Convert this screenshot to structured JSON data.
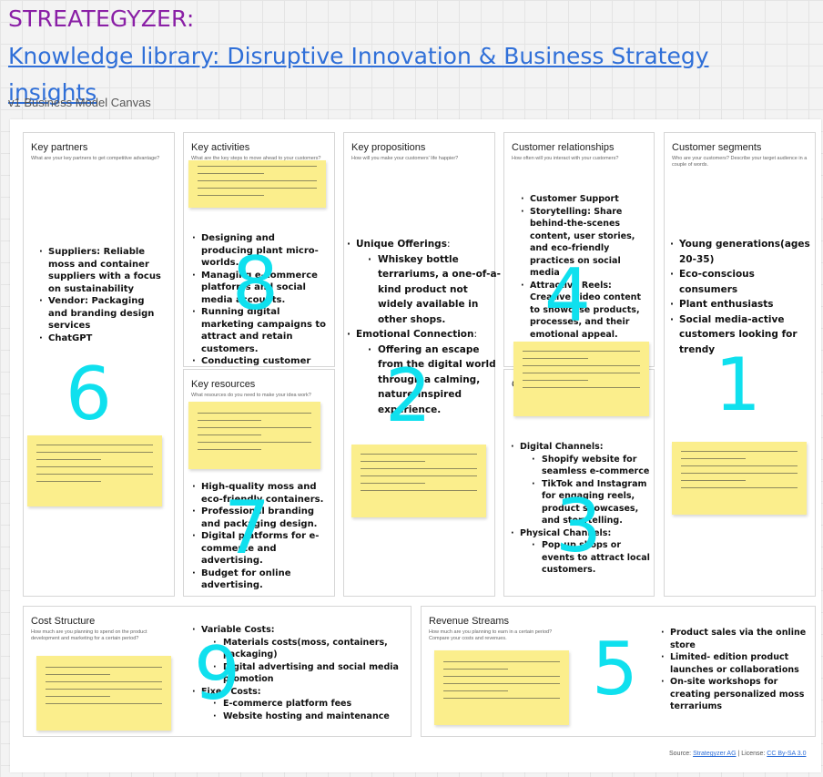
{
  "header": {
    "title": "STREATEGYZER:",
    "link_text": "Knowledge library: Disruptive Innovation & Business Strategy insights",
    "canvas_label": "v1 Business Model Canvas"
  },
  "blocks": {
    "key_partners": {
      "title": "Key partners",
      "question": "What are your key partners to get competitive advantage?",
      "items": [
        "Suppliers: Reliable moss and container suppliers with a focus on sustainability",
        "Vendor: Packaging and branding design services",
        "ChatGPT"
      ],
      "number": "6"
    },
    "key_activities": {
      "title": "Key activities",
      "question": "What are the key steps to move ahead to your customers?",
      "items": [
        "Designing and producing plant micro-worlds.",
        "Managing e-commerce platforms and social media accounts.",
        "Running digital marketing campaigns to attract and retain customers.",
        "Conducting customer feedback surveys for product and brand improvements."
      ],
      "number": "8"
    },
    "key_resources": {
      "title": "Key resources",
      "question": "What resources do you need to make your idea work?",
      "items": [
        "High-quality moss and eco-friendly containers.",
        "Professional branding and packaging design.",
        "Digital platforms for e-commerce and advertising.",
        "Budget for online advertising."
      ],
      "number": "7"
    },
    "key_propositions": {
      "title": "Key propositions",
      "question": "How will you make your customers' life happier?",
      "items": [
        {
          "label": "Unique Offerings",
          "suffix": ":",
          "sub": [
            "Whiskey bottle terrariums, a one-of-a-kind product not widely available in other shops."
          ]
        },
        {
          "label": "Emotional Connection",
          "suffix": ":",
          "sub": [
            "Offering an escape from the digital world through a calming, nature-inspired experience."
          ]
        }
      ],
      "number": "2"
    },
    "customer_relationships": {
      "title": "Customer relationships",
      "question": "How often will you interact with your customers?",
      "items": [
        "Customer Support",
        "Storytelling: Share behind-the-scenes content, user stories, and eco-friendly practices on social media",
        "Attractive Reels: Creative video content to showcase products, processes, and their emotional appeal."
      ],
      "number": "4"
    },
    "channels": {
      "title": "C",
      "items": [
        {
          "label": "Digital Channels:",
          "sub": [
            "Shopify website for seamless e-commerce",
            "TikTok and Instagram for engaging reels, product showcases, and storytelling."
          ]
        },
        {
          "label": "Physical Channels:",
          "sub": [
            "Pop-up shops or events to attract local customers."
          ]
        }
      ],
      "number": "3"
    },
    "customer_segments": {
      "title": "Customer segments",
      "question": "Who are your customers? Describe your target audience in a couple of words.",
      "items": [
        "Young generations(ages 20-35)",
        "Eco-conscious consumers",
        "Plant enthusiasts",
        "Social media-active customers looking for trendy"
      ],
      "number": "1"
    },
    "cost_structure": {
      "title": "Cost Structure",
      "question": "How much are you planning to spend on the product development and marketing for a certain period?",
      "items": [
        {
          "label": "Variable Costs:",
          "sub": [
            "Materials costs(moss, containers, packaging)",
            "Digital advertising and social media promotion"
          ]
        },
        {
          "label": "Fixed Costs:",
          "sub": [
            "E-commerce platform fees",
            "Website hosting and maintenance"
          ]
        }
      ],
      "number": "9"
    },
    "revenue_streams": {
      "title": "Revenue Streams",
      "question": "How much are you planning to earn in a certain period? Compare your costs and revenues.",
      "items": [
        "Product sales via the online store",
        "Limited- edition product launches or collaborations",
        "On-site workshops for creating personalized moss terrariums"
      ],
      "number": "5"
    }
  },
  "footer": {
    "source_label": "Source: ",
    "source_link": "Strategyzer AG",
    "separator": " | License: ",
    "license_link": "CC By-SA 3.0"
  },
  "colors": {
    "title": "#8a1fa6",
    "link": "#2f6fd8",
    "sticky": "#fbee8c",
    "number": "#0fe0ee"
  }
}
